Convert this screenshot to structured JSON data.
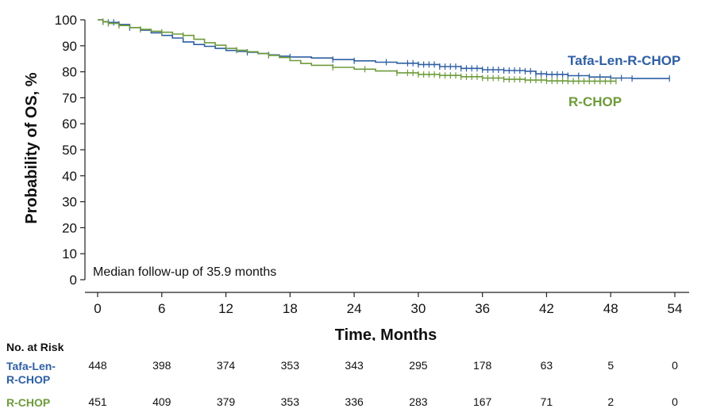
{
  "chart_data": {
    "type": "line",
    "subtype": "kaplan-meier",
    "xlabel": "Time, Months",
    "ylabel": "Probability of OS, %",
    "xlim": [
      0,
      54
    ],
    "ylim": [
      0,
      100
    ],
    "xticks": [
      0,
      6,
      12,
      18,
      24,
      30,
      36,
      42,
      48,
      54
    ],
    "yticks": [
      0,
      10,
      20,
      30,
      40,
      50,
      60,
      70,
      80,
      90,
      100
    ],
    "grid": false,
    "annotation": "Median follow-up of 35.9 months",
    "series": [
      {
        "name": "Tafa-Len-R-CHOP",
        "color": "#2e5fa3",
        "x": [
          0,
          0.5,
          1,
          2,
          3,
          4,
          5,
          6,
          7,
          8,
          9,
          10,
          11,
          12,
          13,
          14,
          15,
          16,
          17,
          18,
          20,
          22,
          24,
          26,
          28,
          30,
          32,
          34,
          36,
          38,
          40,
          41,
          42,
          44,
          46,
          48,
          50,
          53.5
        ],
        "y": [
          100,
          99.3,
          99,
          98.2,
          97,
          96,
          95,
          94,
          93,
          91.5,
          90.5,
          89.8,
          89,
          88.2,
          87.8,
          87.5,
          87,
          86.5,
          86,
          85.7,
          85.3,
          84.7,
          84.2,
          83.7,
          83.3,
          82.8,
          82,
          81.3,
          80.8,
          80.5,
          80.2,
          79.2,
          79,
          78.5,
          78,
          77.6,
          77.4,
          77.4
        ],
        "censor_x": [
          0.5,
          1,
          1.5,
          2,
          3,
          14,
          16,
          18,
          22,
          24,
          27,
          29,
          29.5,
          30,
          30.5,
          31,
          31.5,
          32,
          32.5,
          33,
          33.5,
          34,
          34.5,
          35,
          35.5,
          36,
          36.5,
          37,
          37.5,
          38,
          38.5,
          39,
          39.5,
          40,
          40.5,
          41,
          41.5,
          42,
          42.5,
          43,
          43.5,
          44,
          45,
          46,
          47,
          48,
          49,
          50,
          53.5
        ]
      },
      {
        "name": "R-CHOP",
        "color": "#6e9b3a",
        "x": [
          0,
          0.5,
          1,
          2,
          3,
          4,
          5,
          6,
          7,
          8,
          9,
          10,
          11,
          12,
          13,
          14,
          15,
          16,
          17,
          18,
          19,
          20,
          22,
          24,
          26,
          28,
          30,
          32,
          34,
          36,
          38,
          40,
          42,
          44,
          46,
          48.5
        ],
        "y": [
          100,
          99.2,
          98.6,
          97.8,
          97,
          96.3,
          95.6,
          95.2,
          94.5,
          94,
          92.5,
          91.2,
          90.2,
          89,
          88.3,
          87.7,
          87,
          86.3,
          85.5,
          84.3,
          83.2,
          82.5,
          81.7,
          81,
          80.3,
          79.6,
          79,
          78.6,
          78.1,
          77.6,
          77.1,
          76.8,
          76.5,
          76.4,
          76.4,
          76.4
        ],
        "censor_x": [
          0.5,
          1,
          2,
          4,
          6,
          8,
          13,
          16,
          22,
          25,
          28,
          29,
          29.5,
          30,
          30.5,
          31,
          31.5,
          32,
          32.5,
          33,
          33.5,
          34,
          34.5,
          35,
          35.5,
          36,
          36.5,
          37,
          37.5,
          38,
          38.5,
          39,
          39.5,
          40,
          40.5,
          41,
          41.5,
          42,
          42.5,
          43,
          43.5,
          44,
          44.5,
          45,
          45.5,
          46,
          46.5,
          47,
          47.5,
          48,
          48.5
        ]
      }
    ],
    "risk_table": {
      "title": "No. at Risk",
      "timepoints": [
        0,
        6,
        12,
        18,
        24,
        30,
        36,
        42,
        48,
        54
      ],
      "rows": [
        {
          "label_line1": "Tafa-Len-",
          "label_line2": "R-CHOP",
          "color": "#2e5fa3",
          "values": [
            "448",
            "398",
            "374",
            "353",
            "343",
            "295",
            "178",
            "63",
            "5",
            "0"
          ]
        },
        {
          "label_line1": "R-CHOP",
          "label_line2": "",
          "color": "#6e9b3a",
          "values": [
            "451",
            "409",
            "379",
            "353",
            "336",
            "283",
            "167",
            "71",
            "2",
            "0"
          ]
        }
      ]
    }
  }
}
